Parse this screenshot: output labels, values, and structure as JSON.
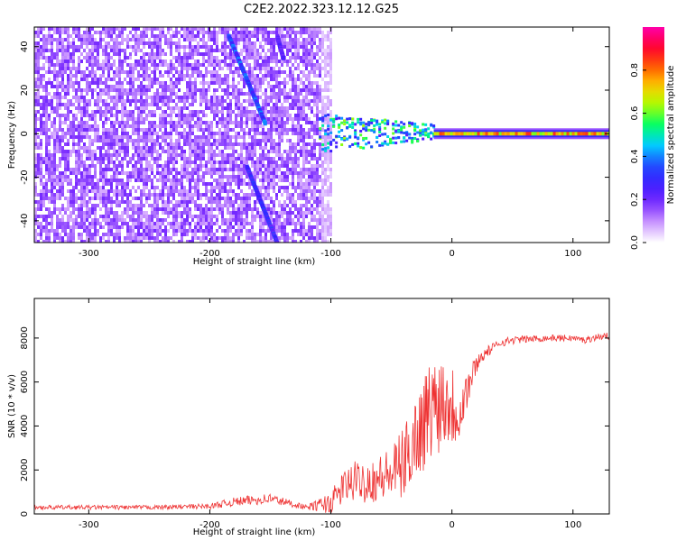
{
  "title": "C2E2.2022.323.12.12.G25",
  "colors": {
    "snr_line": "#ee3333",
    "background": "#ffffff",
    "colormap": [
      "#ffffff",
      "#cc99ff",
      "#7b2cff",
      "#3b1cff",
      "#2050ff",
      "#00d0ff",
      "#00ff66",
      "#aaff00",
      "#ffcc00",
      "#ff5500",
      "#ff0033",
      "#ff00aa"
    ]
  },
  "chart_data": [
    {
      "type": "heatmap",
      "xlabel": "Height of straight line (km)",
      "ylabel": "Frequency (Hz)",
      "xlim": [
        -345,
        130
      ],
      "ylim": [
        -50,
        49
      ],
      "xticks": [
        -300,
        -200,
        -100,
        0,
        100
      ],
      "yticks": [
        -40,
        -20,
        0,
        20,
        40
      ],
      "regions": [
        {
          "name": "noise",
          "x_range": [
            -345,
            -100
          ],
          "y_range": [
            -50,
            49
          ],
          "level": 0.12
        },
        {
          "name": "scatter",
          "x_range": [
            -110,
            -15
          ],
          "y_range": [
            -8,
            10
          ],
          "level": 0.45
        },
        {
          "name": "signal",
          "x_range": [
            -15,
            130
          ],
          "y_range": [
            -2,
            2
          ],
          "level": 0.75
        }
      ],
      "streaks": [
        {
          "x": [
            -185,
            -155
          ],
          "y": [
            45,
            5
          ],
          "level": 0.3
        },
        {
          "x": [
            -170,
            -145
          ],
          "y": [
            -15,
            -50
          ],
          "level": 0.25
        },
        {
          "x": [
            -145,
            -140
          ],
          "y": [
            45,
            35
          ],
          "level": 0.2
        }
      ],
      "colorbar": {
        "label": "Normalized spectral amplitude",
        "range": [
          0,
          1
        ],
        "ticks": [
          0,
          0.2,
          0.4,
          0.6,
          0.8
        ]
      }
    },
    {
      "type": "line",
      "xlabel": "Height of straight line (km)",
      "ylabel": "SNR (10 * v/v)",
      "xlim": [
        -345,
        130
      ],
      "ylim": [
        0,
        9800
      ],
      "xticks": [
        -300,
        -200,
        -100,
        0,
        100
      ],
      "yticks": [
        0,
        2000,
        4000,
        6000,
        8000
      ],
      "x": [
        -345,
        -300,
        -250,
        -200,
        -180,
        -150,
        -120,
        -100,
        -90,
        -80,
        -70,
        -60,
        -50,
        -40,
        -30,
        -20,
        -15,
        -10,
        -5,
        0,
        5,
        10,
        15,
        20,
        25,
        30,
        40,
        50,
        60,
        80,
        100,
        110,
        120,
        130
      ],
      "y": [
        300,
        300,
        300,
        350,
        550,
        700,
        300,
        500,
        1200,
        1500,
        1500,
        1600,
        1800,
        2300,
        3500,
        4500,
        5000,
        5200,
        5300,
        5000,
        4600,
        5300,
        6000,
        6800,
        7200,
        7400,
        7800,
        7900,
        7950,
        8000,
        8000,
        7900,
        8050,
        8100
      ],
      "noise_amplitude": [
        100,
        100,
        100,
        120,
        200,
        250,
        100,
        500,
        800,
        900,
        1000,
        1100,
        1300,
        1600,
        2000,
        2300,
        2400,
        2400,
        2200,
        2000,
        1500,
        1300,
        800,
        400,
        300,
        250,
        200,
        180,
        170,
        150,
        150,
        150,
        150,
        150
      ]
    }
  ]
}
